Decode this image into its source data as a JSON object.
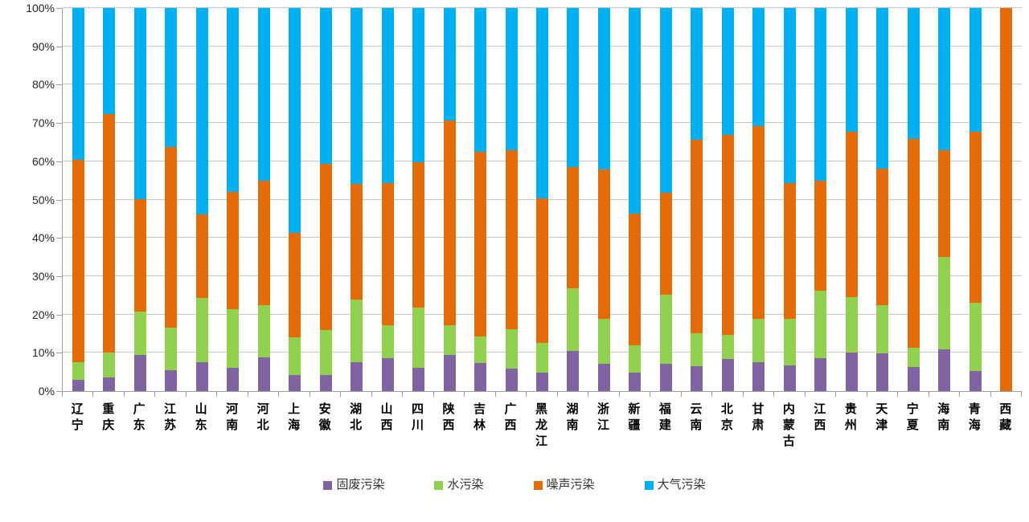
{
  "chart_data": {
    "type": "bar",
    "subtype": "stacked-percent",
    "title": "",
    "xlabel": "",
    "ylabel": "",
    "ylim": [
      0,
      100
    ],
    "grid": true,
    "legend_position": "bottom",
    "y_ticks": [
      "0%",
      "10%",
      "20%",
      "30%",
      "40%",
      "50%",
      "60%",
      "70%",
      "80%",
      "90%",
      "100%"
    ],
    "categories": [
      "辽宁",
      "重庆",
      "广东",
      "江苏",
      "山东",
      "河南",
      "河北",
      "上海",
      "安徽",
      "湖北",
      "山西",
      "四川",
      "陕西",
      "吉林",
      "广西",
      "黑龙江",
      "湖南",
      "浙江",
      "新疆",
      "福建",
      "云南",
      "北京",
      "甘肃",
      "内蒙古",
      "江西",
      "贵州",
      "天津",
      "宁夏",
      "海南",
      "青海",
      "西藏"
    ],
    "series": [
      {
        "name": "固废污染",
        "color": "#8064A2",
        "values": [
          3.0,
          3.5,
          9.5,
          5.5,
          7.6,
          6.1,
          8.8,
          4.3,
          4.2,
          7.6,
          8.5,
          6.1,
          9.5,
          7.3,
          5.9,
          4.9,
          10.4,
          7.1,
          4.9,
          7.1,
          6.4,
          8.4,
          7.6,
          6.8,
          8.7,
          10.1,
          9.9,
          6.3,
          11.0,
          5.3,
          0
        ]
      },
      {
        "name": "水污染",
        "color": "#92D050",
        "values": [
          4.5,
          6.5,
          11.2,
          11.0,
          16.7,
          15.2,
          13.7,
          9.7,
          11.7,
          16.2,
          8.6,
          15.8,
          7.6,
          7.0,
          10.3,
          7.6,
          16.5,
          11.8,
          7.0,
          18.1,
          8.8,
          6.3,
          11.2,
          12.0,
          17.5,
          14.4,
          12.5,
          5.1,
          24.0,
          17.7,
          0
        ]
      },
      {
        "name": "噪声污染",
        "color": "#E36C09",
        "values": [
          52.9,
          62.4,
          29.5,
          47.3,
          21.8,
          30.7,
          32.4,
          27.3,
          43.5,
          30.3,
          37.1,
          37.9,
          53.6,
          48.2,
          46.6,
          37.8,
          31.6,
          39.0,
          34.4,
          26.6,
          50.5,
          52.2,
          50.4,
          35.4,
          28.8,
          43.3,
          35.7,
          54.5,
          28.0,
          44.7,
          100
        ]
      },
      {
        "name": "大气污染",
        "color": "#00B0F0",
        "values": [
          39.6,
          27.6,
          49.8,
          36.2,
          53.9,
          48.0,
          45.1,
          58.7,
          40.6,
          45.9,
          45.8,
          40.2,
          29.3,
          37.5,
          37.2,
          49.7,
          41.5,
          42.1,
          53.7,
          48.2,
          34.3,
          33.1,
          30.8,
          45.8,
          45.0,
          32.2,
          41.9,
          34.1,
          37.0,
          32.3,
          0
        ]
      }
    ],
    "legend": [
      {
        "label": "固废污染",
        "color": "#8064A2"
      },
      {
        "label": "水污染",
        "color": "#92D050"
      },
      {
        "label": "噪声污染",
        "color": "#E36C09"
      },
      {
        "label": "大气污染",
        "color": "#00B0F0"
      }
    ],
    "axis_colors": {
      "axis_line": "#9e9e9e",
      "gridline": "#c8c8c8",
      "tick_text": "#262626"
    }
  }
}
